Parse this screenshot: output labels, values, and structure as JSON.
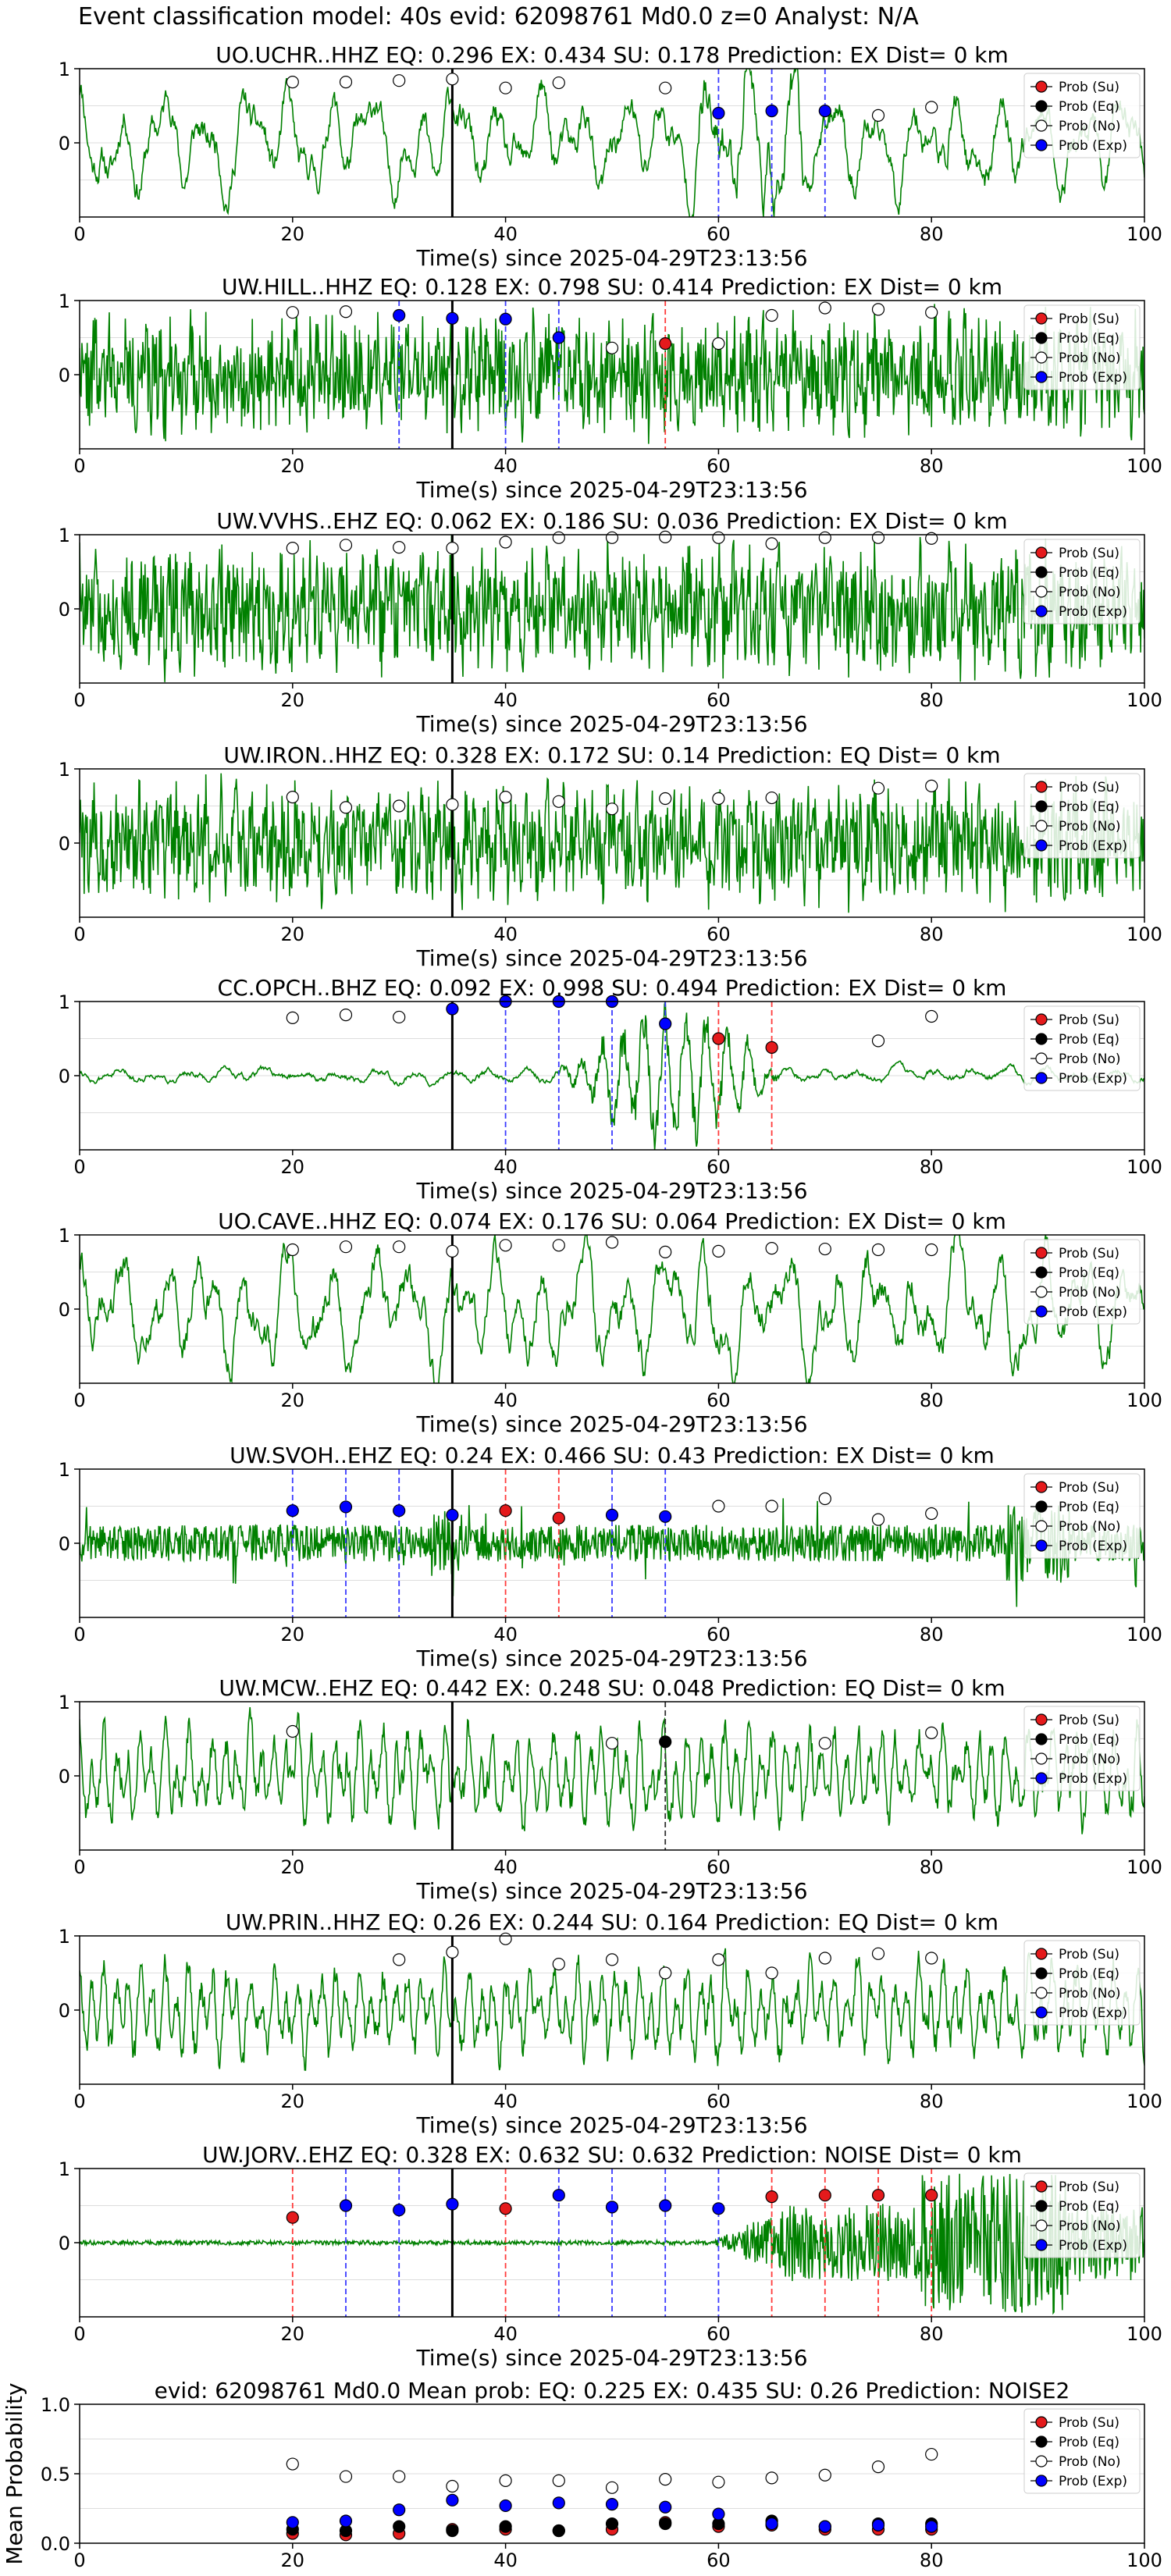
{
  "suptitle": "Event classification model: 40s evid: 62098761 Md0.0 z=0 Analyst: N/A",
  "colors": {
    "waveform": "#008000",
    "su": "#e41a1c",
    "eq": "#000000",
    "no": "#ffffff",
    "exp": "#0000ff",
    "origin_line": "#000000",
    "grid": "#dddddd"
  },
  "legend_labels": [
    "Prob (Su)",
    "Prob (Eq)",
    "Prob (No)",
    "Prob (Exp)"
  ],
  "chart_data": [
    {
      "type": "scatter",
      "title": "UO.UCHR..HHZ   EQ: 0.296  EX: 0.434  SU: 0.178   Prediction: EX    Dist= 0 km",
      "xlabel": "Time(s) since 2025-04-29T23:13:56",
      "ylabel": "",
      "xlim": [
        0,
        100
      ],
      "ylim": [
        -1,
        1
      ],
      "xticks": [
        0,
        20,
        40,
        60,
        80,
        100
      ],
      "yticks": [
        0,
        1
      ],
      "grid": "y",
      "legend": "top-right",
      "origin_time": 35,
      "waveform": {
        "style": "lowfreq",
        "seed": 11,
        "amp": 0.75
      },
      "noise_points": [
        [
          20,
          0.82
        ],
        [
          25,
          0.82
        ],
        [
          30,
          0.84
        ],
        [
          35,
          0.86
        ],
        [
          40,
          0.74
        ],
        [
          45,
          0.81
        ],
        [
          55,
          0.74
        ],
        [
          75,
          0.37
        ],
        [
          80,
          0.48
        ]
      ],
      "exp_points": [
        [
          60,
          0.4
        ],
        [
          65,
          0.43
        ],
        [
          70,
          0.43
        ]
      ],
      "su_points": [],
      "eq_points": [],
      "markers": [
        [
          60,
          "exp"
        ],
        [
          65,
          "exp"
        ],
        [
          70,
          "exp"
        ]
      ]
    },
    {
      "type": "scatter",
      "title": "UW.HILL..HHZ   EQ: 0.128  EX: 0.798  SU: 0.414   Prediction: EX    Dist= 0 km",
      "xlabel": "Time(s) since 2025-04-29T23:13:56",
      "ylabel": "",
      "xlim": [
        0,
        100
      ],
      "ylim": [
        -1,
        1
      ],
      "xticks": [
        0,
        20,
        40,
        60,
        80,
        100
      ],
      "yticks": [
        0,
        1
      ],
      "grid": "y",
      "legend": "top-right",
      "origin_time": 35,
      "waveform": {
        "style": "dense",
        "seed": 22,
        "amp": 0.85
      },
      "noise_points": [
        [
          20,
          0.84
        ],
        [
          25,
          0.85
        ],
        [
          50,
          0.36
        ],
        [
          60,
          0.42
        ],
        [
          65,
          0.8
        ],
        [
          70,
          0.9
        ],
        [
          75,
          0.88
        ],
        [
          80,
          0.84
        ]
      ],
      "exp_points": [
        [
          30,
          0.8
        ],
        [
          35,
          0.76
        ],
        [
          40,
          0.75
        ],
        [
          45,
          0.5
        ]
      ],
      "su_points": [
        [
          55,
          0.42
        ]
      ],
      "eq_points": [],
      "markers": [
        [
          30,
          "exp"
        ],
        [
          40,
          "exp"
        ],
        [
          45,
          "exp"
        ],
        [
          55,
          "su"
        ]
      ]
    },
    {
      "type": "scatter",
      "title": "UW.VVHS..EHZ   EQ: 0.062  EX: 0.186  SU: 0.036   Prediction: EX    Dist= 0 km",
      "xlabel": "Time(s) since 2025-04-29T23:13:56",
      "ylabel": "",
      "xlim": [
        0,
        100
      ],
      "ylim": [
        -1,
        1
      ],
      "xticks": [
        0,
        20,
        40,
        60,
        80,
        100
      ],
      "yticks": [
        0,
        1
      ],
      "grid": "y",
      "legend": "top-right",
      "origin_time": 35,
      "waveform": {
        "style": "dense",
        "seed": 33,
        "amp": 0.9
      },
      "noise_points": [
        [
          20,
          0.82
        ],
        [
          25,
          0.86
        ],
        [
          30,
          0.83
        ],
        [
          35,
          0.82
        ],
        [
          40,
          0.9
        ],
        [
          45,
          0.96
        ],
        [
          50,
          0.96
        ],
        [
          55,
          0.97
        ],
        [
          60,
          0.96
        ],
        [
          65,
          0.88
        ],
        [
          70,
          0.96
        ],
        [
          75,
          0.96
        ],
        [
          80,
          0.95
        ]
      ],
      "exp_points": [],
      "su_points": [],
      "eq_points": [],
      "markers": []
    },
    {
      "type": "scatter",
      "title": "UW.IRON..HHZ   EQ: 0.328  EX: 0.172  SU: 0.14   Prediction: EQ    Dist= 0 km",
      "xlabel": "Time(s) since 2025-04-29T23:13:56",
      "ylabel": "",
      "xlim": [
        0,
        100
      ],
      "ylim": [
        -1,
        1
      ],
      "xticks": [
        0,
        20,
        40,
        60,
        80,
        100
      ],
      "yticks": [
        0,
        1
      ],
      "grid": "y",
      "legend": "top-right",
      "origin_time": 35,
      "waveform": {
        "style": "dense",
        "seed": 44,
        "amp": 0.85
      },
      "noise_points": [
        [
          20,
          0.62
        ],
        [
          25,
          0.48
        ],
        [
          30,
          0.5
        ],
        [
          35,
          0.52
        ],
        [
          40,
          0.62
        ],
        [
          45,
          0.56
        ],
        [
          50,
          0.46
        ],
        [
          55,
          0.6
        ],
        [
          60,
          0.6
        ],
        [
          65,
          0.61
        ],
        [
          75,
          0.74
        ],
        [
          80,
          0.77
        ]
      ],
      "exp_points": [],
      "su_points": [],
      "eq_points": [],
      "markers": []
    },
    {
      "type": "scatter",
      "title": "CC.OPCH..BHZ   EQ: 0.092  EX: 0.998  SU: 0.494   Prediction: EX    Dist= 0 km",
      "xlabel": "Time(s) since 2025-04-29T23:13:56",
      "ylabel": "",
      "xlim": [
        0,
        100
      ],
      "ylim": [
        -1,
        1
      ],
      "xticks": [
        0,
        20,
        40,
        60,
        80,
        100
      ],
      "yticks": [
        0,
        1
      ],
      "grid": "y",
      "legend": "top-right",
      "origin_time": 35,
      "waveform": {
        "style": "quiet_burst",
        "seed": 55,
        "amp": 0.9,
        "burst": [
          45,
          66
        ]
      },
      "noise_points": [
        [
          20,
          0.78
        ],
        [
          25,
          0.82
        ],
        [
          30,
          0.79
        ],
        [
          75,
          0.47
        ],
        [
          80,
          0.8
        ]
      ],
      "exp_points": [
        [
          35,
          0.9
        ],
        [
          40,
          1.0
        ],
        [
          45,
          1.0
        ],
        [
          50,
          1.0
        ],
        [
          55,
          0.7
        ]
      ],
      "su_points": [
        [
          60,
          0.5
        ],
        [
          65,
          0.38
        ]
      ],
      "eq_points": [],
      "markers": [
        [
          40,
          "exp"
        ],
        [
          45,
          "exp"
        ],
        [
          50,
          "exp"
        ],
        [
          55,
          "exp"
        ],
        [
          60,
          "su"
        ],
        [
          65,
          "su"
        ]
      ]
    },
    {
      "type": "scatter",
      "title": "UO.CAVE..HHZ   EQ: 0.074  EX: 0.176  SU: 0.064   Prediction: EX    Dist= 0 km",
      "xlabel": "Time(s) since 2025-04-29T23:13:56",
      "ylabel": "",
      "xlim": [
        0,
        100
      ],
      "ylim": [
        -1,
        1
      ],
      "xticks": [
        0,
        20,
        40,
        60,
        80,
        100
      ],
      "yticks": [
        0,
        1
      ],
      "grid": "y",
      "legend": "top-right",
      "origin_time": 35,
      "waveform": {
        "style": "lowfreq",
        "seed": 66,
        "amp": 0.85
      },
      "noise_points": [
        [
          20,
          0.8
        ],
        [
          25,
          0.84
        ],
        [
          30,
          0.84
        ],
        [
          35,
          0.78
        ],
        [
          40,
          0.86
        ],
        [
          45,
          0.86
        ],
        [
          50,
          0.9
        ],
        [
          55,
          0.77
        ],
        [
          60,
          0.78
        ],
        [
          65,
          0.82
        ],
        [
          70,
          0.81
        ],
        [
          75,
          0.8
        ],
        [
          80,
          0.8
        ]
      ],
      "exp_points": [],
      "su_points": [],
      "eq_points": [],
      "markers": []
    },
    {
      "type": "scatter",
      "title": "UW.SVOH..EHZ   EQ: 0.24  EX: 0.466  SU: 0.43   Prediction: EX    Dist= 0 km",
      "xlabel": "Time(s) since 2025-04-29T23:13:56",
      "ylabel": "",
      "xlim": [
        0,
        100
      ],
      "ylim": [
        -1,
        1
      ],
      "xticks": [
        0,
        20,
        40,
        60,
        80,
        100
      ],
      "yticks": [
        0,
        1
      ],
      "grid": "y",
      "legend": "top-right",
      "origin_time": 35,
      "waveform": {
        "style": "spiky",
        "seed": 77,
        "amp": 0.55
      },
      "noise_points": [
        [
          60,
          0.5
        ],
        [
          65,
          0.5
        ],
        [
          70,
          0.6
        ],
        [
          75,
          0.32
        ],
        [
          80,
          0.4
        ]
      ],
      "exp_points": [
        [
          20,
          0.44
        ],
        [
          25,
          0.49
        ],
        [
          30,
          0.44
        ],
        [
          35,
          0.38
        ],
        [
          50,
          0.38
        ],
        [
          55,
          0.36
        ]
      ],
      "su_points": [
        [
          40,
          0.44
        ],
        [
          45,
          0.34
        ]
      ],
      "eq_points": [],
      "markers": [
        [
          20,
          "exp"
        ],
        [
          25,
          "exp"
        ],
        [
          30,
          "exp"
        ],
        [
          40,
          "su"
        ],
        [
          45,
          "su"
        ],
        [
          50,
          "exp"
        ],
        [
          55,
          "exp"
        ]
      ]
    },
    {
      "type": "scatter",
      "title": "UW.MCW..EHZ   EQ: 0.442  EX: 0.248  SU: 0.048   Prediction: EQ    Dist= 0 km",
      "xlabel": "Time(s) since 2025-04-29T23:13:56",
      "ylabel": "",
      "xlim": [
        0,
        100
      ],
      "ylim": [
        -1,
        1
      ],
      "xticks": [
        0,
        20,
        40,
        60,
        80,
        100
      ],
      "yticks": [
        0,
        1
      ],
      "grid": "y",
      "legend": "top-right",
      "origin_time": 35,
      "waveform": {
        "style": "medium",
        "seed": 88,
        "amp": 0.8
      },
      "noise_points": [
        [
          20,
          0.6
        ],
        [
          50,
          0.44
        ],
        [
          70,
          0.44
        ],
        [
          80,
          0.58
        ]
      ],
      "exp_points": [],
      "su_points": [],
      "eq_points": [
        [
          55,
          0.46
        ]
      ],
      "markers": [
        [
          55,
          "eq"
        ]
      ]
    },
    {
      "type": "scatter",
      "title": "UW.PRIN..HHZ   EQ: 0.26  EX: 0.244  SU: 0.164   Prediction: EQ    Dist= 0 km",
      "xlabel": "Time(s) since 2025-04-29T23:13:56",
      "ylabel": "",
      "xlim": [
        0,
        100
      ],
      "ylim": [
        -1,
        1
      ],
      "xticks": [
        0,
        20,
        40,
        60,
        80,
        100
      ],
      "yticks": [
        0,
        1
      ],
      "grid": "y",
      "legend": "top-right",
      "origin_time": 35,
      "waveform": {
        "style": "medium",
        "seed": 99,
        "amp": 0.8
      },
      "noise_points": [
        [
          30,
          0.68
        ],
        [
          35,
          0.78
        ],
        [
          40,
          0.96
        ],
        [
          45,
          0.62
        ],
        [
          50,
          0.68
        ],
        [
          55,
          0.5
        ],
        [
          60,
          0.68
        ],
        [
          65,
          0.5
        ],
        [
          70,
          0.7
        ],
        [
          75,
          0.76
        ],
        [
          80,
          0.7
        ]
      ],
      "exp_points": [],
      "su_points": [],
      "eq_points": [],
      "markers": []
    },
    {
      "type": "scatter",
      "title": "UW.JORV..EHZ   EQ: 0.328  EX: 0.632  SU: 0.632   Prediction: NOISE    Dist= 0 km",
      "xlabel": "Time(s) since 2025-04-29T23:13:56",
      "ylabel": "",
      "xlim": [
        0,
        100
      ],
      "ylim": [
        -1,
        1
      ],
      "xticks": [
        0,
        20,
        40,
        60,
        80,
        100
      ],
      "yticks": [
        0,
        1
      ],
      "grid": "y",
      "legend": "top-right",
      "origin_time": 35,
      "waveform": {
        "style": "late_burst",
        "seed": 111,
        "amp": 0.95,
        "burst": [
          59,
          100
        ]
      },
      "noise_points": [],
      "exp_points": [
        [
          25,
          0.5
        ],
        [
          30,
          0.44
        ],
        [
          35,
          0.52
        ],
        [
          45,
          0.64
        ],
        [
          50,
          0.48
        ],
        [
          55,
          0.5
        ],
        [
          60,
          0.46
        ]
      ],
      "su_points": [
        [
          20,
          0.34
        ],
        [
          40,
          0.46
        ],
        [
          65,
          0.62
        ],
        [
          70,
          0.64
        ],
        [
          75,
          0.64
        ],
        [
          80,
          0.64
        ]
      ],
      "eq_points": [],
      "markers": [
        [
          20,
          "su"
        ],
        [
          25,
          "exp"
        ],
        [
          30,
          "exp"
        ],
        [
          40,
          "su"
        ],
        [
          45,
          "exp"
        ],
        [
          50,
          "exp"
        ],
        [
          55,
          "exp"
        ],
        [
          60,
          "exp"
        ],
        [
          65,
          "su"
        ],
        [
          70,
          "su"
        ],
        [
          75,
          "su"
        ],
        [
          80,
          "su"
        ]
      ]
    },
    {
      "type": "scatter",
      "title": "evid: 62098761  Md0.0   Mean prob:   EQ: 0.225  EX: 0.435  SU: 0.26   Prediction: NOISE2",
      "xlabel": "",
      "ylabel": "Mean Probability",
      "xlim": [
        0,
        100
      ],
      "ylim": [
        0,
        1
      ],
      "xticks": [
        0,
        20,
        40,
        60,
        80,
        100
      ],
      "yticks": [
        0,
        0.5,
        1
      ],
      "grid": "y",
      "legend": "top-right",
      "noise_points": [
        [
          20,
          0.57
        ],
        [
          25,
          0.48
        ],
        [
          30,
          0.48
        ],
        [
          35,
          0.41
        ],
        [
          40,
          0.45
        ],
        [
          45,
          0.45
        ],
        [
          50,
          0.4
        ],
        [
          55,
          0.46
        ],
        [
          60,
          0.44
        ],
        [
          65,
          0.47
        ],
        [
          70,
          0.49
        ],
        [
          75,
          0.55
        ],
        [
          80,
          0.64
        ]
      ],
      "exp_points": [
        [
          20,
          0.15
        ],
        [
          25,
          0.16
        ],
        [
          30,
          0.24
        ],
        [
          35,
          0.31
        ],
        [
          40,
          0.27
        ],
        [
          45,
          0.29
        ],
        [
          50,
          0.28
        ],
        [
          55,
          0.26
        ],
        [
          60,
          0.21
        ],
        [
          65,
          0.14
        ],
        [
          70,
          0.12
        ],
        [
          75,
          0.13
        ],
        [
          80,
          0.12
        ]
      ],
      "eq_points": [
        [
          20,
          0.1
        ],
        [
          25,
          0.09
        ],
        [
          30,
          0.12
        ],
        [
          35,
          0.09
        ],
        [
          40,
          0.12
        ],
        [
          45,
          0.09
        ],
        [
          50,
          0.14
        ],
        [
          55,
          0.14
        ],
        [
          60,
          0.14
        ],
        [
          65,
          0.16
        ],
        [
          70,
          0.12
        ],
        [
          75,
          0.14
        ],
        [
          80,
          0.14
        ]
      ],
      "su_points": [
        [
          20,
          0.07
        ],
        [
          25,
          0.06
        ],
        [
          30,
          0.07
        ],
        [
          35,
          0.1
        ],
        [
          40,
          0.1
        ],
        [
          45,
          0.09
        ],
        [
          50,
          0.1
        ],
        [
          55,
          0.15
        ],
        [
          60,
          0.12
        ],
        [
          65,
          0.13
        ],
        [
          70,
          0.1
        ],
        [
          75,
          0.1
        ],
        [
          80,
          0.1
        ]
      ],
      "markers": []
    }
  ]
}
